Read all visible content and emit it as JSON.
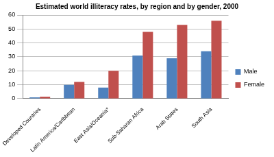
{
  "chart_data": {
    "type": "bar",
    "title": "Estimated world illiteracy rates, by region and by gender, 2000",
    "categories": [
      "Developed Countries",
      "Latin America/Caribbean",
      "East Asia/Oceania*",
      "Sub-Saharan Africa",
      "Arab States",
      "South Asia"
    ],
    "series": [
      {
        "name": "Male",
        "color": "#4f81bd",
        "values": [
          1,
          10,
          8,
          31,
          29,
          34
        ]
      },
      {
        "name": "Female",
        "color": "#c0504d",
        "values": [
          1.5,
          12,
          20,
          48,
          53,
          56
        ]
      }
    ],
    "ylim": [
      0,
      60
    ],
    "yticks": [
      0,
      10,
      20,
      30,
      40,
      50,
      60
    ],
    "grid": true,
    "legend": "right"
  }
}
